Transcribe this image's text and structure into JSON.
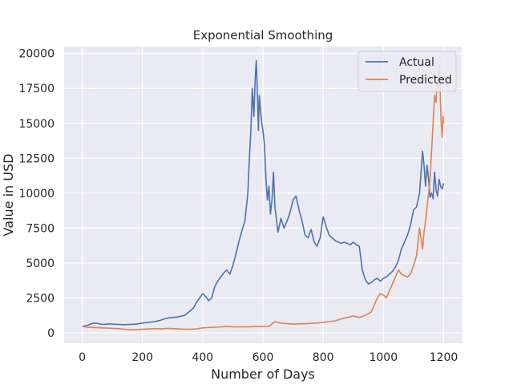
{
  "chart_data": {
    "type": "line",
    "title": "Exponential Smoothing",
    "xlabel": "Number of Days",
    "ylabel": "Value in USD",
    "xlim": [
      -60,
      1260
    ],
    "ylim": [
      -750,
      20500
    ],
    "xticks": [
      0,
      200,
      400,
      600,
      800,
      1000,
      1200
    ],
    "yticks": [
      0,
      2500,
      5000,
      7500,
      10000,
      12500,
      15000,
      17500,
      20000
    ],
    "grid": true,
    "legend_position": "top-right",
    "series": [
      {
        "name": "Actual",
        "color": "#4c72b0",
        "x": [
          0,
          10,
          20,
          30,
          40,
          50,
          60,
          70,
          80,
          90,
          100,
          120,
          140,
          160,
          180,
          200,
          220,
          240,
          260,
          280,
          300,
          320,
          340,
          360,
          370,
          380,
          390,
          400,
          410,
          420,
          430,
          440,
          450,
          460,
          470,
          480,
          490,
          500,
          510,
          520,
          530,
          540,
          550,
          555,
          560,
          565,
          570,
          575,
          578,
          582,
          585,
          588,
          592,
          596,
          600,
          605,
          610,
          615,
          620,
          625,
          630,
          635,
          640,
          650,
          660,
          670,
          680,
          690,
          700,
          710,
          720,
          730,
          740,
          750,
          760,
          770,
          780,
          790,
          800,
          810,
          820,
          830,
          840,
          850,
          860,
          870,
          880,
          890,
          900,
          910,
          920,
          930,
          940,
          950,
          960,
          970,
          980,
          990,
          1000,
          1010,
          1020,
          1030,
          1040,
          1050,
          1060,
          1070,
          1080,
          1090,
          1100,
          1110,
          1120,
          1125,
          1130,
          1135,
          1140,
          1145,
          1150,
          1155,
          1160,
          1165,
          1170,
          1175,
          1180,
          1185,
          1190,
          1195,
          1200
        ],
        "y": [
          450,
          500,
          550,
          650,
          700,
          680,
          620,
          600,
          610,
          640,
          620,
          600,
          580,
          600,
          620,
          700,
          750,
          800,
          900,
          1050,
          1100,
          1150,
          1250,
          1600,
          1800,
          2200,
          2500,
          2800,
          2600,
          2300,
          2500,
          3300,
          3700,
          4000,
          4300,
          4500,
          4200,
          4800,
          5600,
          6500,
          7300,
          8000,
          10000,
          12500,
          14500,
          17500,
          15500,
          18500,
          19500,
          17000,
          14500,
          17000,
          16000,
          15000,
          14500,
          13500,
          11000,
          9500,
          10500,
          8500,
          9500,
          11500,
          9000,
          7200,
          8200,
          7500,
          8000,
          8600,
          9500,
          9800,
          8800,
          8000,
          7000,
          6800,
          7400,
          6500,
          6200,
          6800,
          8300,
          7600,
          7000,
          6800,
          6600,
          6500,
          6400,
          6500,
          6400,
          6300,
          6500,
          6300,
          6200,
          4500,
          3800,
          3500,
          3600,
          3800,
          3900,
          3700,
          3900,
          4000,
          4200,
          4400,
          4700,
          5200,
          6000,
          6500,
          7000,
          7700,
          8800,
          9000,
          10000,
          11500,
          13000,
          12000,
          10500,
          12000,
          11000,
          9700,
          10000,
          9600,
          11500,
          10200,
          9800,
          11000,
          10500,
          10300,
          10700
        ]
      },
      {
        "name": "Predicted",
        "color": "#dd8452",
        "x": [
          0,
          20,
          40,
          60,
          80,
          100,
          120,
          140,
          160,
          180,
          200,
          220,
          240,
          260,
          280,
          300,
          320,
          340,
          360,
          380,
          400,
          420,
          440,
          460,
          480,
          500,
          520,
          540,
          560,
          580,
          600,
          620,
          640,
          660,
          680,
          700,
          720,
          740,
          760,
          780,
          800,
          820,
          840,
          860,
          880,
          900,
          920,
          940,
          960,
          970,
          980,
          990,
          1000,
          1010,
          1020,
          1030,
          1040,
          1050,
          1060,
          1070,
          1080,
          1090,
          1100,
          1110,
          1120,
          1130,
          1135,
          1140,
          1145,
          1150,
          1155,
          1160,
          1165,
          1170,
          1175,
          1178,
          1182,
          1185,
          1188,
          1190,
          1192,
          1195,
          1198,
          1200
        ],
        "y": [
          450,
          400,
          380,
          360,
          340,
          320,
          300,
          250,
          220,
          230,
          260,
          280,
          300,
          280,
          320,
          300,
          280,
          260,
          250,
          280,
          350,
          380,
          400,
          420,
          450,
          430,
          420,
          430,
          440,
          450,
          460,
          470,
          800,
          700,
          650,
          620,
          640,
          650,
          680,
          700,
          750,
          800,
          850,
          1000,
          1100,
          1200,
          1100,
          1250,
          1500,
          2000,
          2500,
          2800,
          2700,
          2500,
          3000,
          3500,
          4000,
          4500,
          4200,
          4100,
          4000,
          4200,
          4800,
          5500,
          7500,
          6000,
          7200,
          8000,
          9000,
          10000,
          11000,
          13000,
          15000,
          17000,
          16500,
          18000,
          17500,
          19000,
          18000,
          16000,
          15000,
          14000,
          15500,
          15000
        ]
      }
    ]
  }
}
